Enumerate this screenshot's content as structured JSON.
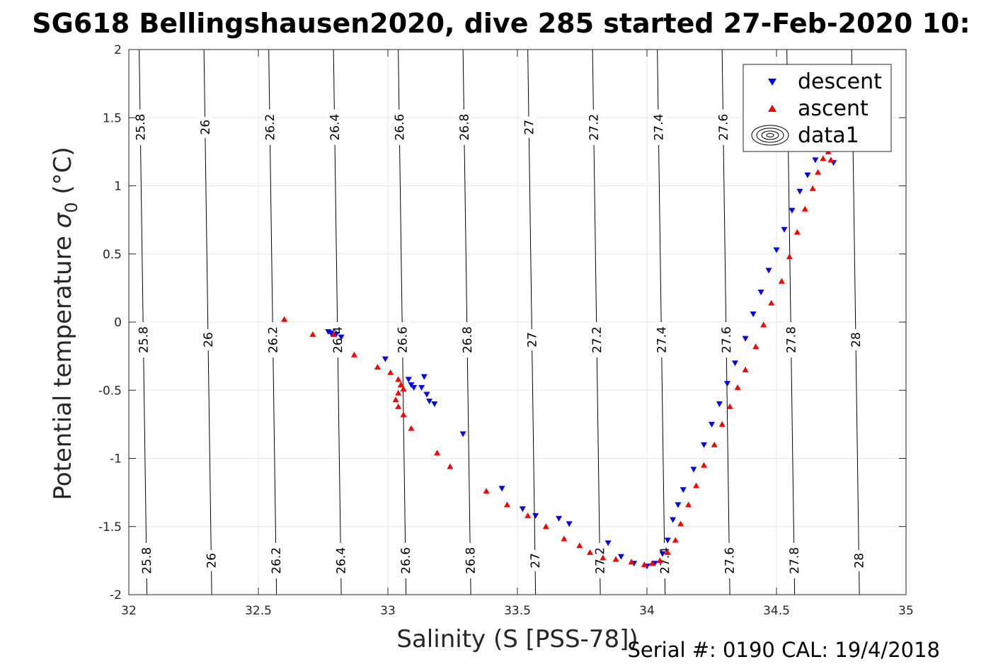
{
  "chart_data": {
    "type": "scatter",
    "title": "SG618 Bellingshausen2020, dive 285 started 27-Feb-2020 10:",
    "xlabel": "Salinity (S [PSS-78])",
    "ylabel_main": "Potential temperature ",
    "ylabel_symbol": "σ",
    "ylabel_sub": "0",
    "ylabel_unit": " (°C)",
    "xlim": [
      32,
      35
    ],
    "ylim": [
      -2,
      2
    ],
    "x_ticks": [
      32,
      32.5,
      33,
      33.5,
      34,
      34.5,
      35
    ],
    "x_tick_labels": [
      "32",
      "32.5",
      "33",
      "33.5",
      "34",
      "34.5",
      "35"
    ],
    "y_ticks": [
      -2,
      -1.5,
      -1,
      -0.5,
      0,
      0.5,
      1,
      1.5,
      2
    ],
    "y_tick_labels": [
      "-2",
      "-1.5",
      "-1",
      "-0.5",
      "0",
      "0.5",
      "1",
      "1.5",
      "2"
    ],
    "grid": true,
    "legend_position": "top-right",
    "density_contours": [
      {
        "level": "25.8",
        "s_at_tmin": 32.07,
        "s_at_tmax": 32.04
      },
      {
        "level": "26",
        "s_at_tmin": 32.32,
        "s_at_tmax": 32.29
      },
      {
        "level": "26.2",
        "s_at_tmin": 32.57,
        "s_at_tmax": 32.54
      },
      {
        "level": "26.4",
        "s_at_tmin": 32.82,
        "s_at_tmax": 32.79
      },
      {
        "level": "26.6",
        "s_at_tmin": 33.07,
        "s_at_tmax": 33.04
      },
      {
        "level": "26.8",
        "s_at_tmin": 33.32,
        "s_at_tmax": 33.29
      },
      {
        "level": "27",
        "s_at_tmin": 33.57,
        "s_at_tmax": 33.54
      },
      {
        "level": "27.2",
        "s_at_tmin": 33.82,
        "s_at_tmax": 33.79
      },
      {
        "level": "27.4",
        "s_at_tmin": 34.07,
        "s_at_tmax": 34.04
      },
      {
        "level": "27.6",
        "s_at_tmin": 34.32,
        "s_at_tmax": 34.29
      },
      {
        "level": "27.8",
        "s_at_tmin": 34.57,
        "s_at_tmax": 34.54
      },
      {
        "level": "28",
        "s_at_tmin": 34.82,
        "s_at_tmax": 34.79
      }
    ],
    "series": [
      {
        "name": "descent",
        "color": "#0000ff",
        "marker": "triangle-down",
        "points": [
          [
            32.77,
            -0.07
          ],
          [
            32.78,
            -0.08
          ],
          [
            32.8,
            -0.09
          ],
          [
            32.82,
            -0.11
          ],
          [
            32.99,
            -0.27
          ],
          [
            33.08,
            -0.42
          ],
          [
            33.09,
            -0.46
          ],
          [
            33.1,
            -0.48
          ],
          [
            33.13,
            -0.48
          ],
          [
            33.15,
            -0.53
          ],
          [
            33.16,
            -0.58
          ],
          [
            33.18,
            -0.6
          ],
          [
            33.14,
            -0.4
          ],
          [
            33.29,
            -0.82
          ],
          [
            33.44,
            -1.22
          ],
          [
            33.52,
            -1.37
          ],
          [
            33.57,
            -1.42
          ],
          [
            33.66,
            -1.44
          ],
          [
            33.7,
            -1.48
          ],
          [
            33.85,
            -1.62
          ],
          [
            33.9,
            -1.72
          ],
          [
            33.95,
            -1.77
          ],
          [
            34.0,
            -1.79
          ],
          [
            34.03,
            -1.77
          ],
          [
            34.06,
            -1.7
          ],
          [
            34.08,
            -1.6
          ],
          [
            34.1,
            -1.45
          ],
          [
            34.12,
            -1.34
          ],
          [
            34.14,
            -1.23
          ],
          [
            34.18,
            -1.08
          ],
          [
            34.22,
            -0.9
          ],
          [
            34.25,
            -0.75
          ],
          [
            34.28,
            -0.6
          ],
          [
            34.31,
            -0.45
          ],
          [
            34.34,
            -0.3
          ],
          [
            34.38,
            -0.12
          ],
          [
            34.41,
            0.06
          ],
          [
            34.44,
            0.22
          ],
          [
            34.47,
            0.38
          ],
          [
            34.5,
            0.53
          ],
          [
            34.53,
            0.68
          ],
          [
            34.56,
            0.82
          ],
          [
            34.59,
            0.96
          ],
          [
            34.62,
            1.08
          ],
          [
            34.65,
            1.19
          ],
          [
            34.67,
            1.27
          ],
          [
            34.7,
            1.3
          ],
          [
            34.72,
            1.17
          ]
        ]
      },
      {
        "name": "ascent",
        "color": "#ff0000",
        "marker": "triangle-up",
        "points": [
          [
            32.6,
            0.02
          ],
          [
            32.71,
            -0.09
          ],
          [
            32.79,
            -0.09
          ],
          [
            32.87,
            -0.24
          ],
          [
            32.96,
            -0.33
          ],
          [
            33.01,
            -0.37
          ],
          [
            33.04,
            -0.42
          ],
          [
            33.05,
            -0.46
          ],
          [
            33.06,
            -0.49
          ],
          [
            33.04,
            -0.52
          ],
          [
            33.03,
            -0.57
          ],
          [
            33.04,
            -0.62
          ],
          [
            33.06,
            -0.68
          ],
          [
            33.09,
            -0.78
          ],
          [
            33.19,
            -0.96
          ],
          [
            33.24,
            -1.06
          ],
          [
            33.38,
            -1.24
          ],
          [
            33.46,
            -1.34
          ],
          [
            33.54,
            -1.42
          ],
          [
            33.61,
            -1.5
          ],
          [
            33.68,
            -1.59
          ],
          [
            33.74,
            -1.64
          ],
          [
            33.78,
            -1.69
          ],
          [
            33.83,
            -1.73
          ],
          [
            33.88,
            -1.74
          ],
          [
            33.94,
            -1.76
          ],
          [
            33.99,
            -1.78
          ],
          [
            34.02,
            -1.77
          ],
          [
            34.05,
            -1.75
          ],
          [
            34.08,
            -1.69
          ],
          [
            34.11,
            -1.6
          ],
          [
            34.13,
            -1.48
          ],
          [
            34.16,
            -1.34
          ],
          [
            34.19,
            -1.2
          ],
          [
            34.22,
            -1.05
          ],
          [
            34.26,
            -0.9
          ],
          [
            34.29,
            -0.75
          ],
          [
            34.32,
            -0.62
          ],
          [
            34.35,
            -0.48
          ],
          [
            34.38,
            -0.35
          ],
          [
            34.42,
            -0.18
          ],
          [
            34.45,
            -0.02
          ],
          [
            34.48,
            0.14
          ],
          [
            34.52,
            0.3
          ],
          [
            34.55,
            0.48
          ],
          [
            34.58,
            0.66
          ],
          [
            34.61,
            0.83
          ],
          [
            34.64,
            0.98
          ],
          [
            34.66,
            1.1
          ],
          [
            34.68,
            1.2
          ],
          [
            34.7,
            1.25
          ],
          [
            34.71,
            1.19
          ]
        ]
      },
      {
        "name": "data1",
        "marker": "contour"
      }
    ]
  },
  "serial_text": "Serial #: 0190  CAL: 19/4/2018"
}
